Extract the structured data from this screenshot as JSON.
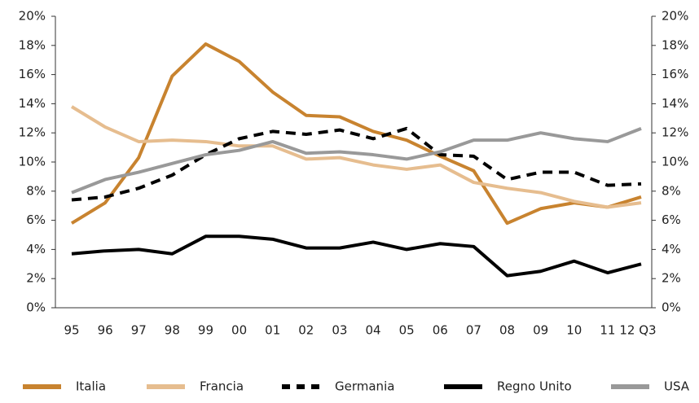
{
  "chart_data": {
    "type": "line",
    "categories": [
      "95",
      "96",
      "97",
      "98",
      "99",
      "00",
      "01",
      "02",
      "03",
      "04",
      "05",
      "06",
      "07",
      "08",
      "09",
      "10",
      "11",
      "12 Q3"
    ],
    "series": [
      {
        "name": "Italia",
        "color": "#c8832f",
        "dash": false,
        "values": [
          5.8,
          7.2,
          10.3,
          15.9,
          18.1,
          16.9,
          14.8,
          13.2,
          13.1,
          12.1,
          11.5,
          10.4,
          9.4,
          5.8,
          6.8,
          7.2,
          6.9,
          7.6
        ]
      },
      {
        "name": "Francia",
        "color": "#e6bd8f",
        "dash": false,
        "values": [
          13.8,
          12.4,
          11.4,
          11.5,
          11.4,
          11.1,
          11.1,
          10.2,
          10.3,
          9.8,
          9.5,
          9.8,
          8.6,
          8.2,
          7.9,
          7.3,
          6.9,
          7.2
        ]
      },
      {
        "name": "Germania",
        "color": "#000000",
        "dash": true,
        "values": [
          7.4,
          7.6,
          8.2,
          9.1,
          10.5,
          11.6,
          12.1,
          11.9,
          12.2,
          11.6,
          12.3,
          10.5,
          10.4,
          8.8,
          9.3,
          9.3,
          8.4,
          8.5
        ]
      },
      {
        "name": "Regno Unito",
        "color": "#000000",
        "dash": false,
        "values": [
          3.7,
          3.9,
          4.0,
          3.7,
          4.9,
          4.9,
          4.7,
          4.1,
          4.1,
          4.5,
          4.0,
          4.4,
          4.2,
          2.2,
          2.5,
          3.2,
          2.4,
          3.0
        ]
      },
      {
        "name": "USA",
        "color": "#999999",
        "dash": false,
        "values": [
          7.9,
          8.8,
          9.3,
          9.9,
          10.5,
          10.8,
          11.4,
          10.6,
          10.7,
          10.5,
          10.2,
          10.7,
          11.5,
          11.5,
          12.0,
          11.6,
          11.4,
          12.3
        ]
      }
    ],
    "ylim": [
      0,
      20
    ],
    "yticks": [
      {
        "value": 0,
        "label": "0%"
      },
      {
        "value": 2,
        "label": "2%"
      },
      {
        "value": 4,
        "label": "4%"
      },
      {
        "value": 6,
        "label": "6%"
      },
      {
        "value": 8,
        "label": "8%"
      },
      {
        "value": 10,
        "label": "10%"
      },
      {
        "value": 12,
        "label": "12%"
      },
      {
        "value": 14,
        "label": "14%"
      },
      {
        "value": 16,
        "label": "16%"
      },
      {
        "value": 18,
        "label": "18%"
      },
      {
        "value": 20,
        "label": "20%"
      }
    ],
    "y2lim": [
      0,
      20
    ],
    "y2ticks": [
      {
        "value": 0,
        "label": "0%"
      },
      {
        "value": 2,
        "label": "2%"
      },
      {
        "value": 4,
        "label": "4%"
      },
      {
        "value": 6,
        "label": "6%"
      },
      {
        "value": 8,
        "label": "8%"
      },
      {
        "value": 10,
        "label": "10%"
      },
      {
        "value": 12,
        "label": "12%"
      },
      {
        "value": 14,
        "label": "14%"
      },
      {
        "value": 16,
        "label": "16%"
      },
      {
        "value": 18,
        "label": "18%"
      },
      {
        "value": 20,
        "label": "20%"
      }
    ],
    "grid": false,
    "legend": "bottom"
  }
}
